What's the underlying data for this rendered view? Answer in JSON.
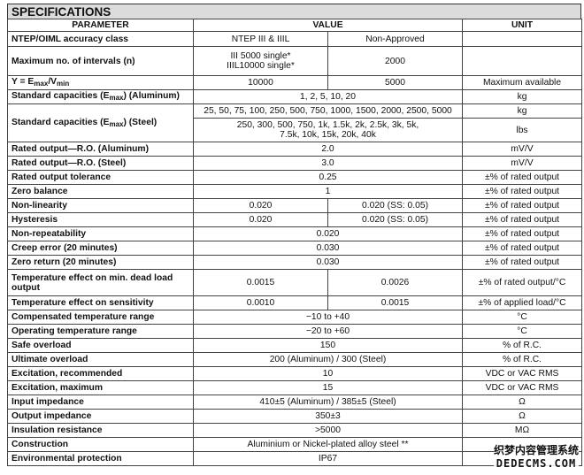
{
  "title": "SPECIFICATIONS",
  "headers": {
    "parameter": "PARAMETER",
    "value": "VALUE",
    "unit": "UNIT"
  },
  "rows": {
    "accuracy": {
      "p": "NTEP/OIML accuracy class",
      "v1": "NTEP III & IIIL",
      "v2": "Non-Approved",
      "u": ""
    },
    "intervals": {
      "p": "Maximum no. of intervals (n)",
      "v1a": "III 5000 single*",
      "v1b": "IIIL10000 single*",
      "v2": "2000",
      "u": ""
    },
    "y": {
      "p_pre": "Y = E",
      "p_sub1": "max",
      "p_mid": "/V",
      "p_sub2": "min",
      "v1": "10000",
      "v2": "5000",
      "u": "Maximum available"
    },
    "cap_al": {
      "p_pre": "Standard capacities (E",
      "p_sub": "max",
      "p_post": ") (Aluminum)",
      "v": "1, 2, 5, 10, 20",
      "u": "kg"
    },
    "cap_st": {
      "p_pre": "Standard capacities (E",
      "p_sub": "max",
      "p_post": ") (Steel)",
      "v1": "25, 50, 75, 100, 250, 500, 750, 1000, 1500, 2000, 2500, 5000",
      "u1": "kg",
      "v2": "250, 300, 500, 750, 1k, 1.5k, 2k, 2.5k, 3k, 5k, 7.5k, 10k, 15k, 20k, 40k",
      "u2": "lbs"
    },
    "ro_al": {
      "p": "Rated output—R.O. (Aluminum)",
      "v": "2.0",
      "u": "mV/V"
    },
    "ro_st": {
      "p": "Rated output—R.O. (Steel)",
      "v": "3.0",
      "u": "mV/V"
    },
    "tol": {
      "p": "Rated output tolerance",
      "v": "0.25",
      "u": "±% of rated output"
    },
    "zero": {
      "p": "Zero balance",
      "v": "1",
      "u": "±% of rated output"
    },
    "nonlin": {
      "p": "Non-linearity",
      "v1": "0.020",
      "v2": "0.020 (SS: 0.05)",
      "u": "±% of rated output"
    },
    "hyst": {
      "p": "Hysteresis",
      "v1": "0.020",
      "v2": "0.020 (SS: 0.05)",
      "u": "±% of rated output"
    },
    "nonrep": {
      "p": "Non-repeatability",
      "v": "0.020",
      "u": "±% of rated output"
    },
    "creep": {
      "p": "Creep error (20 minutes)",
      "v": "0.030",
      "u": "±% of rated output"
    },
    "zret": {
      "p": "Zero return (20 minutes)",
      "v": "0.030",
      "u": "±% of rated output"
    },
    "tmin": {
      "p": "Temperature effect on min. dead load output",
      "v1": "0.0015",
      "v2": "0.0026",
      "u": "±% of rated output/°C"
    },
    "tsens": {
      "p": "Temperature effect on sensitivity",
      "v1": "0.0010",
      "v2": "0.0015",
      "u": "±% of applied load/°C"
    },
    "comp": {
      "p": "Compensated temperature range",
      "v": "−10 to +40",
      "u": "°C"
    },
    "oper": {
      "p": "Operating temperature range",
      "v": "−20 to +60",
      "u": "°C"
    },
    "safe": {
      "p": "Safe overload",
      "v": "150",
      "u": "% of R.C."
    },
    "ult": {
      "p": "Ultimate overload",
      "v": "200 (Aluminum) / 300 (Steel)",
      "u": "% of R.C."
    },
    "exrec": {
      "p": "Excitation, recommended",
      "v": "10",
      "u": "VDC or VAC RMS"
    },
    "exmax": {
      "p": "Excitation, maximum",
      "v": "15",
      "u": "VDC or VAC RMS"
    },
    "inimp": {
      "p": "Input impedance",
      "v": "410±5 (Aluminum) / 385±5 (Steel)",
      "u": "Ω"
    },
    "outimp": {
      "p": "Output impedance",
      "v": "350±3",
      "u": "Ω"
    },
    "insul": {
      "p": "Insulation resistance",
      "v": ">5000",
      "u": "MΩ"
    },
    "constr": {
      "p": "Construction",
      "v": "Aluminium or Nickel-plated alloy steel **",
      "u": ""
    },
    "env": {
      "p": "Environmental protection",
      "v": "IP67",
      "u": ""
    }
  },
  "watermark": {
    "line1": "织梦内容管理系统",
    "line2": "DEDECMS.COM"
  }
}
